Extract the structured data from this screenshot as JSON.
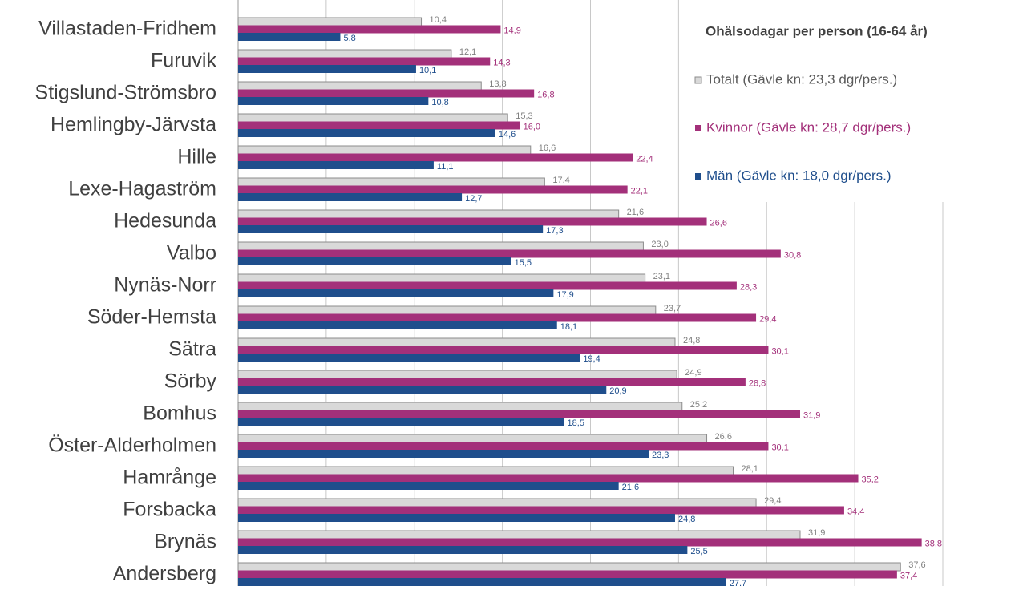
{
  "chart_data": {
    "type": "bar",
    "orientation": "horizontal",
    "legend_title": "Ohälsodagar per person (16-64 år)",
    "legend_position": "upper right",
    "grid": true,
    "xlim": [
      0,
      40
    ],
    "xticks": [
      0,
      5,
      10,
      15,
      20,
      25,
      30,
      35,
      40
    ],
    "categories": [
      "Villastaden-Fridhem",
      "Furuvik",
      "Stigslund-Strömsbro",
      "Hemlingby-Järvsta",
      "Hille",
      "Lexe-Hagaström",
      "Hedesunda",
      "Valbo",
      "Nynäs-Norr",
      "Söder-Hemsta",
      "Sätra",
      "Sörby",
      "Bomhus",
      "Öster-Alderholmen",
      "Hamrånge",
      "Forsbacka",
      "Brynäs",
      "Andersberg"
    ],
    "series": [
      {
        "name": "Totalt (Gävle kn: 23,3 dgr/pers.)",
        "color": "#d9d9d9",
        "values": [
          10.4,
          12.1,
          13.8,
          15.3,
          16.6,
          17.4,
          21.6,
          23.0,
          23.1,
          23.7,
          24.8,
          24.9,
          25.2,
          26.6,
          28.1,
          29.4,
          31.9,
          37.6
        ],
        "value_labels": [
          "10,4",
          "12,1",
          "13,8",
          "15,3",
          "16,6",
          "17,4",
          "21,6",
          "23,0",
          "23,1",
          "23,7",
          "24,8",
          "24,9",
          "25,2",
          "26,6",
          "28,1",
          "29,4",
          "31,9",
          "37,6"
        ]
      },
      {
        "name": "Kvinnor (Gävle kn: 28,7 dgr/pers.)",
        "color": "#a3307a",
        "values": [
          14.9,
          14.3,
          16.8,
          16.0,
          22.4,
          22.1,
          26.6,
          30.8,
          28.3,
          29.4,
          30.1,
          28.8,
          31.9,
          30.1,
          35.2,
          34.4,
          38.8,
          37.4
        ],
        "value_labels": [
          "14,9",
          "14,3",
          "16,8",
          "16,0",
          "22,4",
          "22,1",
          "26,6",
          "30,8",
          "28,3",
          "29,4",
          "30,1",
          "28,8",
          "31,9",
          "30,1",
          "35,2",
          "34,4",
          "38,8",
          "37,4"
        ]
      },
      {
        "name": "Män (Gävle kn: 18,0 dgr/pers.)",
        "color": "#1f4e8c",
        "values": [
          5.8,
          10.1,
          10.8,
          14.6,
          11.1,
          12.7,
          17.3,
          15.5,
          17.9,
          18.1,
          19.4,
          20.9,
          18.5,
          23.3,
          21.6,
          24.8,
          25.5,
          27.7
        ],
        "value_labels": [
          "5,8",
          "10,1",
          "10,8",
          "14,6",
          "11,1",
          "12,7",
          "17,3",
          "15,5",
          "17,9",
          "18,1",
          "19,4",
          "20,9",
          "18,5",
          "23,3",
          "21,6",
          "24,8",
          "25,5",
          "27,7"
        ]
      }
    ]
  }
}
